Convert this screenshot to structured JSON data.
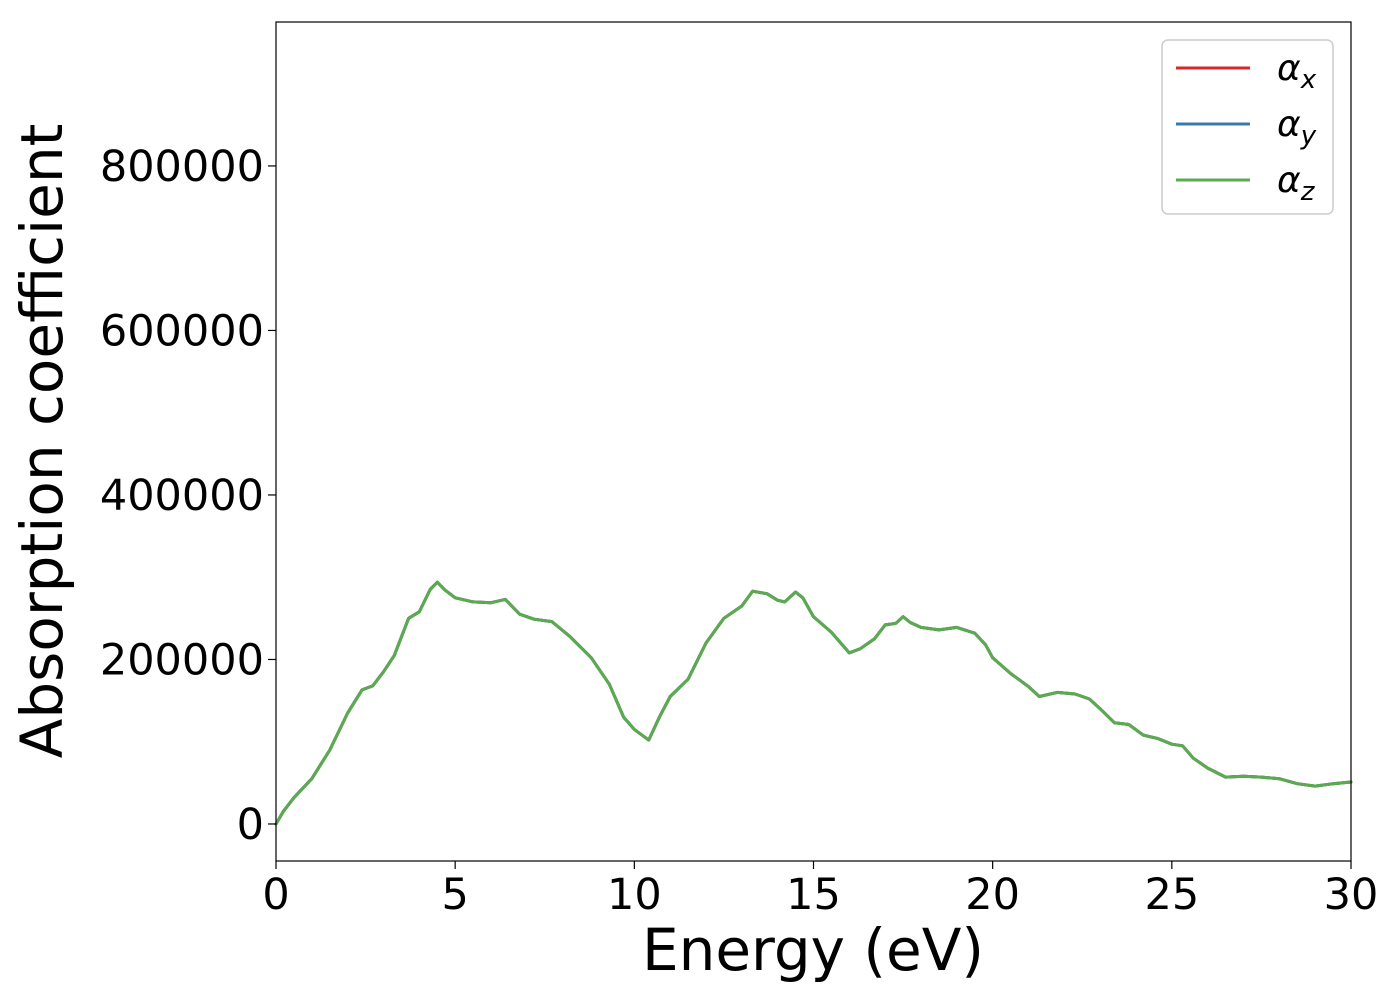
{
  "chart_data": {
    "type": "line",
    "title": "",
    "xlabel": "Energy (eV)",
    "ylabel": "Absorption coefficient",
    "xlim": [
      0,
      30
    ],
    "ylim": [
      -45000,
      975000
    ],
    "x_ticks": [
      0,
      5,
      10,
      15,
      20,
      25,
      30
    ],
    "y_ticks": [
      0,
      200000,
      400000,
      600000,
      800000
    ],
    "grid": false,
    "legend_position": "top-right",
    "x": [
      0,
      0.2,
      0.5,
      1.0,
      1.5,
      2.0,
      2.4,
      2.7,
      3.0,
      3.3,
      3.7,
      4.0,
      4.3,
      4.5,
      4.7,
      5.0,
      5.5,
      6.0,
      6.4,
      6.8,
      7.2,
      7.7,
      8.2,
      8.8,
      9.3,
      9.7,
      10.0,
      10.4,
      10.7,
      11.0,
      11.5,
      12.0,
      12.5,
      13.0,
      13.3,
      13.7,
      14.0,
      14.2,
      14.5,
      14.7,
      15.0,
      15.5,
      16.0,
      16.3,
      16.7,
      17.0,
      17.3,
      17.5,
      17.7,
      18.0,
      18.5,
      19.0,
      19.5,
      19.8,
      20.0,
      20.5,
      21.0,
      21.3,
      21.8,
      22.3,
      22.7,
      23.0,
      23.4,
      23.8,
      24.2,
      24.6,
      25.0,
      25.3,
      25.6,
      26.0,
      26.5,
      27.0,
      27.5,
      28.0,
      28.5,
      29.0,
      29.5,
      30.0
    ],
    "series": [
      {
        "name": "αx",
        "color": "#d62728",
        "y": [
          0,
          15000,
          32000,
          55000,
          90000,
          135000,
          163000,
          168000,
          185000,
          205000,
          250000,
          258000,
          285000,
          294000,
          285000,
          275000,
          270000,
          269000,
          273000,
          255000,
          249000,
          246000,
          228000,
          202000,
          170000,
          130000,
          115000,
          102000,
          130000,
          155000,
          176000,
          220000,
          250000,
          265000,
          283000,
          280000,
          272000,
          270000,
          282000,
          275000,
          252000,
          233000,
          208000,
          213000,
          225000,
          242000,
          244000,
          252000,
          245000,
          239000,
          236000,
          239000,
          232000,
          218000,
          202000,
          183000,
          167000,
          155000,
          160000,
          158000,
          152000,
          140000,
          123000,
          121000,
          108000,
          104000,
          97000,
          95000,
          80000,
          68000,
          57000,
          58000,
          57000,
          55000,
          49000,
          46000,
          49000,
          51000
        ]
      },
      {
        "name": "αy",
        "color": "#3a78b0",
        "y": [
          0,
          15000,
          32000,
          55000,
          90000,
          135000,
          163000,
          168000,
          185000,
          205000,
          250000,
          258000,
          285000,
          294000,
          285000,
          275000,
          270000,
          269000,
          273000,
          255000,
          249000,
          246000,
          228000,
          202000,
          170000,
          130000,
          115000,
          102000,
          130000,
          155000,
          176000,
          220000,
          250000,
          265000,
          283000,
          280000,
          272000,
          270000,
          282000,
          275000,
          252000,
          233000,
          208000,
          213000,
          225000,
          242000,
          244000,
          252000,
          245000,
          239000,
          236000,
          239000,
          232000,
          218000,
          202000,
          183000,
          167000,
          155000,
          160000,
          158000,
          152000,
          140000,
          123000,
          121000,
          108000,
          104000,
          97000,
          95000,
          80000,
          68000,
          57000,
          58000,
          57000,
          55000,
          49000,
          46000,
          49000,
          51000
        ]
      },
      {
        "name": "αz",
        "color": "#5aab4f",
        "y": [
          0,
          15000,
          32000,
          55000,
          90000,
          135000,
          163000,
          168000,
          185000,
          205000,
          250000,
          258000,
          285000,
          294000,
          285000,
          275000,
          270000,
          269000,
          273000,
          255000,
          249000,
          246000,
          228000,
          202000,
          170000,
          130000,
          115000,
          102000,
          130000,
          155000,
          176000,
          220000,
          250000,
          265000,
          283000,
          280000,
          272000,
          270000,
          282000,
          275000,
          252000,
          233000,
          208000,
          213000,
          225000,
          242000,
          244000,
          252000,
          245000,
          239000,
          236000,
          239000,
          232000,
          218000,
          202000,
          183000,
          167000,
          155000,
          160000,
          158000,
          152000,
          140000,
          123000,
          121000,
          108000,
          104000,
          97000,
          95000,
          80000,
          68000,
          57000,
          58000,
          57000,
          55000,
          49000,
          46000,
          49000,
          51000
        ]
      }
    ]
  },
  "legend": [
    {
      "symbol": "α",
      "sub": "x",
      "color": "#d62728"
    },
    {
      "symbol": "α",
      "sub": "y",
      "color": "#3a78b0"
    },
    {
      "symbol": "α",
      "sub": "z",
      "color": "#5aab4f"
    }
  ]
}
